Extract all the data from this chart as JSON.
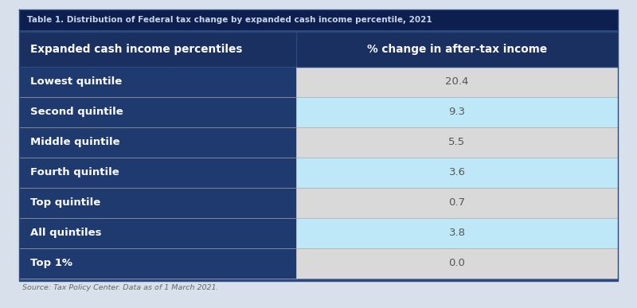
{
  "title": "Table 1. Distribution of Federal tax change by expanded cash income percentile, 2021",
  "title_color": "#c8d4e8",
  "title_bg": "#0d1f4e",
  "header_col1": "Expanded cash income percentiles",
  "header_col2": "% change in after-tax income",
  "header_bg": "#1a3060",
  "header_text_color": "#ffffff",
  "left_cell_bg": "#1e3a6e",
  "left_cell_text": "#ffffff",
  "rows": [
    {
      "label": "Lowest quintile",
      "value": "20.4",
      "value_bg": "#d9d9d9"
    },
    {
      "label": "Second quintile",
      "value": "9.3",
      "value_bg": "#bee8f8"
    },
    {
      "label": "Middle quintile",
      "value": "5.5",
      "value_bg": "#d9d9d9"
    },
    {
      "label": "Fourth quintile",
      "value": "3.6",
      "value_bg": "#bee8f8"
    },
    {
      "label": "Top quintile",
      "value": "0.7",
      "value_bg": "#d9d9d9"
    },
    {
      "label": "All quintiles",
      "value": "3.8",
      "value_bg": "#bee8f8"
    },
    {
      "label": "Top 1%",
      "value": "0.0",
      "value_bg": "#d9d9d9"
    }
  ],
  "source_text": "Source: Tax Policy Center. Data as of 1 March 2021.",
  "source_text_color": "#666666",
  "outer_bg": "#d8e0ec",
  "col_split": 0.465,
  "figsize": [
    8.0,
    3.87
  ],
  "dpi": 100
}
